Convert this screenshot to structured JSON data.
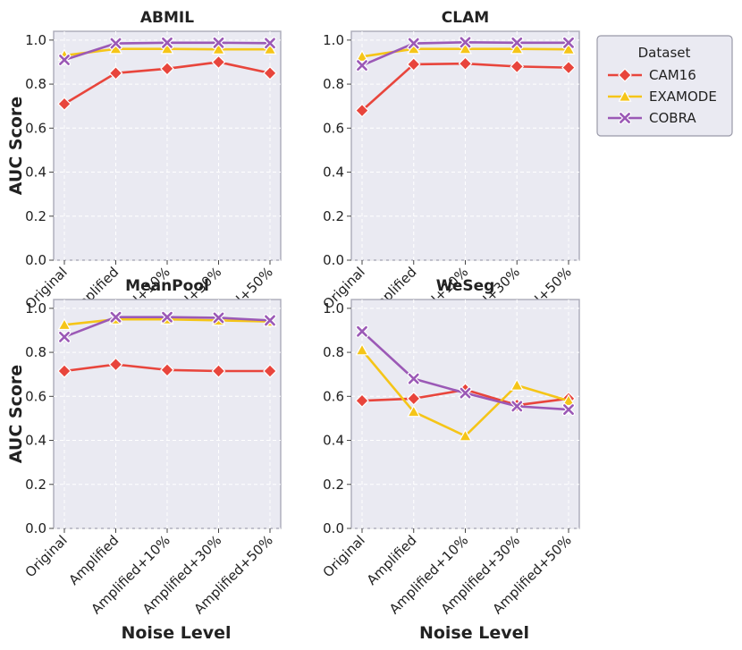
{
  "chart_data": {
    "type": "line",
    "x": [
      "Original",
      "Amplified",
      "Amplified+10%",
      "Amplified+30%",
      "Amplified+50%"
    ],
    "xlabel": "Noise Level",
    "ylabel": "AUC Score",
    "ylim": [
      0.0,
      1.04
    ],
    "yticks": [
      "0.0",
      "0.2",
      "0.4",
      "0.6",
      "0.8",
      "1.0"
    ],
    "grid": true,
    "legend": {
      "title": "Dataset",
      "placement": "right-of-top-right-panel",
      "entries": [
        "CAM16",
        "EXAMODE",
        "COBRA"
      ]
    },
    "series_styles": [
      {
        "name": "CAM16",
        "color": "#e8453c",
        "marker": "diamond"
      },
      {
        "name": "EXAMODE",
        "color": "#f5c518",
        "marker": "triangle"
      },
      {
        "name": "COBRA",
        "color": "#9b59b6",
        "marker": "x"
      }
    ],
    "panels": [
      {
        "title": "ABMIL",
        "series": [
          {
            "name": "CAM16",
            "values": [
              0.71,
              0.85,
              0.87,
              0.9,
              0.85
            ]
          },
          {
            "name": "EXAMODE",
            "values": [
              0.93,
              0.96,
              0.96,
              0.958,
              0.958
            ]
          },
          {
            "name": "COBRA",
            "values": [
              0.91,
              0.985,
              0.988,
              0.988,
              0.986
            ]
          }
        ]
      },
      {
        "title": "CLAM",
        "series": [
          {
            "name": "CAM16",
            "values": [
              0.68,
              0.89,
              0.893,
              0.88,
              0.875
            ]
          },
          {
            "name": "EXAMODE",
            "values": [
              0.925,
              0.96,
              0.96,
              0.96,
              0.958
            ]
          },
          {
            "name": "COBRA",
            "values": [
              0.885,
              0.985,
              0.99,
              0.988,
              0.988
            ]
          }
        ]
      },
      {
        "title": "MeanPool",
        "series": [
          {
            "name": "CAM16",
            "values": [
              0.715,
              0.745,
              0.72,
              0.715,
              0.715
            ]
          },
          {
            "name": "EXAMODE",
            "values": [
              0.925,
              0.95,
              0.95,
              0.945,
              0.94
            ]
          },
          {
            "name": "COBRA",
            "values": [
              0.87,
              0.96,
              0.96,
              0.957,
              0.945
            ]
          }
        ]
      },
      {
        "title": "WeSeg",
        "series": [
          {
            "name": "CAM16",
            "values": [
              0.58,
              0.59,
              0.63,
              0.56,
              0.59
            ]
          },
          {
            "name": "EXAMODE",
            "values": [
              0.81,
              0.53,
              0.42,
              0.65,
              0.58
            ]
          },
          {
            "name": "COBRA",
            "values": [
              0.895,
              0.68,
              0.615,
              0.555,
              0.54
            ]
          }
        ]
      }
    ]
  }
}
